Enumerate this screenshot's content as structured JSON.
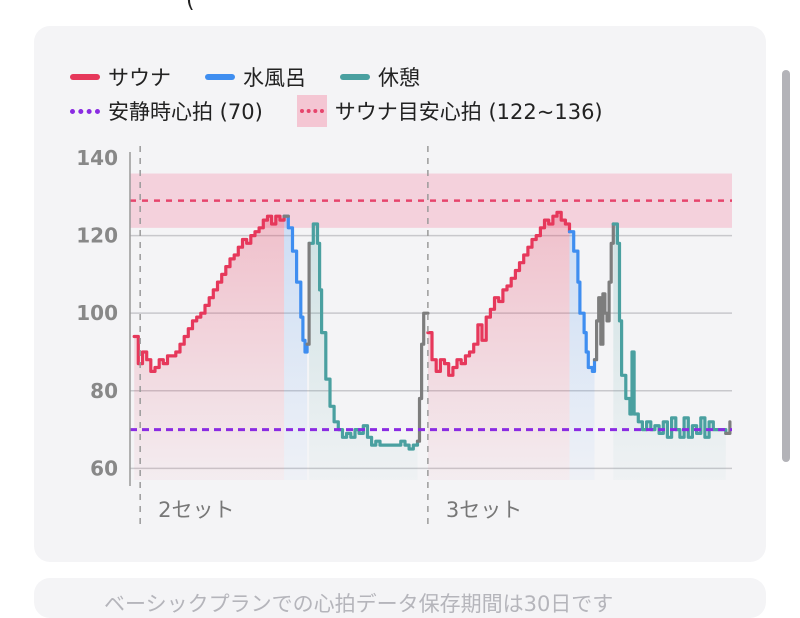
{
  "header_fragment": "(",
  "card_next_text": "ベーシックプランでの心拍データ保存期間は30日です",
  "colors": {
    "sauna": "#e6385b",
    "cold_bath": "#3f8ef0",
    "rest": "#4aa0a0",
    "transition": "#7d7d7d",
    "resting_hr": "#8a2be2",
    "target_band": "#f4c6d3",
    "target_line": "#e6456c"
  },
  "legend": {
    "sauna": "サウナ",
    "cold_bath": "水風呂",
    "rest": "休憩",
    "resting_hr": "安静時心拍 (70)",
    "target": "サウナ目安心拍 (122~136)"
  },
  "chart_data": {
    "type": "line",
    "x_unit": "sample",
    "ylim": [
      57,
      140
    ],
    "yticks": [
      60,
      80,
      100,
      120,
      140
    ],
    "grid": "horizontal",
    "legend_position": "top-left",
    "reference_lines": [
      {
        "name": "安静時心拍",
        "y": 70
      },
      {
        "name": "サウナ目安心拍上限付近",
        "y": 129
      }
    ],
    "target_band": [
      122,
      136
    ],
    "set_markers": [
      {
        "x": 0,
        "label": "2セット"
      },
      {
        "x": 141,
        "label": "3セット"
      }
    ],
    "xlim": [
      -2,
      287
    ],
    "series": [
      {
        "name": "サウナ",
        "points": [
          [
            0,
            94
          ],
          [
            2,
            87
          ],
          [
            4,
            90
          ],
          [
            6,
            88
          ],
          [
            8,
            85
          ],
          [
            10,
            86
          ],
          [
            12,
            88
          ],
          [
            14,
            87
          ],
          [
            16,
            89
          ],
          [
            18,
            89
          ],
          [
            20,
            90
          ],
          [
            22,
            92
          ],
          [
            24,
            94
          ],
          [
            26,
            96
          ],
          [
            28,
            98
          ],
          [
            30,
            99
          ],
          [
            32,
            100
          ],
          [
            34,
            102
          ],
          [
            36,
            104
          ],
          [
            38,
            106
          ],
          [
            40,
            108
          ],
          [
            42,
            110
          ],
          [
            44,
            112
          ],
          [
            46,
            114
          ],
          [
            48,
            115
          ],
          [
            50,
            117
          ],
          [
            52,
            119
          ],
          [
            54,
            118
          ],
          [
            56,
            120
          ],
          [
            58,
            121
          ],
          [
            60,
            122
          ],
          [
            62,
            124
          ],
          [
            64,
            125
          ],
          [
            66,
            123
          ],
          [
            68,
            125
          ],
          [
            70,
            124
          ],
          [
            72,
            125
          ]
        ]
      },
      {
        "name": "水風呂",
        "points": [
          [
            72,
            125
          ],
          [
            74,
            122
          ],
          [
            76,
            116
          ],
          [
            78,
            108
          ],
          [
            80,
            99
          ],
          [
            81,
            93
          ],
          [
            82,
            90
          ],
          [
            83,
            92
          ]
        ]
      },
      {
        "name": "休憩",
        "points": [
          [
            84,
            118
          ],
          [
            86,
            123
          ],
          [
            88,
            118
          ],
          [
            89,
            106
          ],
          [
            90,
            95
          ],
          [
            92,
            83
          ],
          [
            94,
            76
          ],
          [
            96,
            72
          ],
          [
            98,
            70
          ],
          [
            100,
            68
          ],
          [
            102,
            69
          ],
          [
            104,
            68
          ],
          [
            106,
            70
          ],
          [
            108,
            69
          ],
          [
            110,
            71
          ],
          [
            112,
            68
          ],
          [
            114,
            66
          ],
          [
            116,
            67
          ],
          [
            118,
            66
          ],
          [
            120,
            66
          ],
          [
            122,
            66
          ],
          [
            124,
            66
          ],
          [
            126,
            66
          ],
          [
            128,
            67
          ],
          [
            130,
            66
          ],
          [
            132,
            65
          ],
          [
            134,
            66
          ],
          [
            136,
            67
          ]
        ]
      },
      {
        "name": "移行",
        "points": [
          [
            72,
            125
          ],
          [
            74,
            125
          ]
        ]
      },
      {
        "name": "移行",
        "points": [
          [
            83,
            92
          ],
          [
            84,
            118
          ]
        ]
      },
      {
        "name": "移行",
        "points": [
          [
            136,
            67
          ],
          [
            137,
            78
          ],
          [
            138,
            92
          ],
          [
            139,
            100
          ],
          [
            141,
            100
          ]
        ]
      },
      {
        "name": "サウナ",
        "points": [
          [
            141,
            95
          ],
          [
            143,
            88
          ],
          [
            145,
            85
          ],
          [
            147,
            88
          ],
          [
            149,
            87
          ],
          [
            151,
            84
          ],
          [
            153,
            86
          ],
          [
            155,
            88
          ],
          [
            157,
            87
          ],
          [
            159,
            89
          ],
          [
            161,
            90
          ],
          [
            163,
            92
          ],
          [
            165,
            97
          ],
          [
            167,
            93
          ],
          [
            169,
            99
          ],
          [
            171,
            101
          ],
          [
            173,
            104
          ],
          [
            175,
            103
          ],
          [
            177,
            106
          ],
          [
            179,
            107
          ],
          [
            181,
            109
          ],
          [
            183,
            111
          ],
          [
            185,
            113
          ],
          [
            187,
            115
          ],
          [
            189,
            117
          ],
          [
            191,
            119
          ],
          [
            193,
            120
          ],
          [
            195,
            122
          ],
          [
            197,
            124
          ],
          [
            199,
            123
          ],
          [
            201,
            125
          ],
          [
            203,
            126
          ],
          [
            205,
            124
          ],
          [
            207,
            123
          ],
          [
            209,
            121
          ]
        ]
      },
      {
        "name": "水風呂",
        "points": [
          [
            209,
            121
          ],
          [
            211,
            116
          ],
          [
            213,
            108
          ],
          [
            214,
            100
          ],
          [
            216,
            95
          ],
          [
            217,
            90
          ],
          [
            218,
            86
          ],
          [
            220,
            85
          ],
          [
            221,
            88
          ]
        ]
      },
      {
        "name": "移行",
        "points": [
          [
            221,
            88
          ],
          [
            222,
            98
          ],
          [
            223,
            104
          ],
          [
            224,
            92
          ],
          [
            225,
            105
          ],
          [
            226,
            100
          ],
          [
            227,
            98
          ],
          [
            228,
            108
          ],
          [
            229,
            118
          ],
          [
            230,
            123
          ]
        ]
      },
      {
        "name": "休憩",
        "points": [
          [
            230,
            123
          ],
          [
            232,
            118
          ],
          [
            233,
            98
          ],
          [
            234,
            84
          ],
          [
            236,
            78
          ],
          [
            238,
            74
          ],
          [
            239,
            90
          ],
          [
            240,
            74
          ],
          [
            242,
            72
          ],
          [
            244,
            70
          ],
          [
            246,
            72
          ],
          [
            248,
            70
          ],
          [
            250,
            71
          ],
          [
            252,
            69
          ],
          [
            254,
            72
          ],
          [
            256,
            68
          ],
          [
            258,
            73
          ],
          [
            260,
            70
          ],
          [
            262,
            68
          ],
          [
            264,
            73
          ],
          [
            266,
            68
          ],
          [
            268,
            71
          ],
          [
            270,
            69
          ],
          [
            272,
            73
          ],
          [
            274,
            68
          ],
          [
            276,
            72
          ],
          [
            278,
            70
          ],
          [
            280,
            70
          ],
          [
            282,
            70
          ],
          [
            284,
            69
          ]
        ]
      },
      {
        "name": "移行",
        "points": [
          [
            284,
            69
          ],
          [
            286,
            72
          ]
        ]
      }
    ]
  }
}
